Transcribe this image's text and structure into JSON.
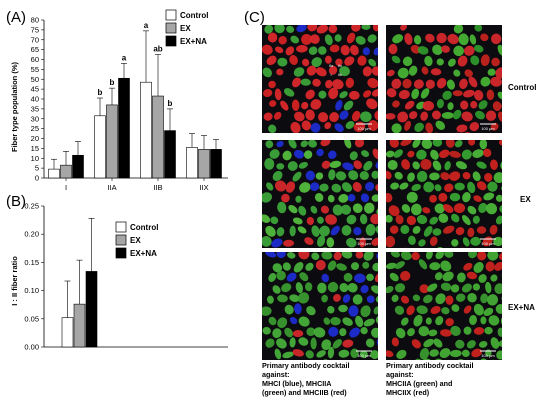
{
  "panel_labels": {
    "a": "(A)",
    "b": "(B)",
    "c": "(C)"
  },
  "colors": {
    "control": "#ffffff",
    "ex": "#a6a6a6",
    "exna": "#000000",
    "bar_stroke": "#000000"
  },
  "chart_data": [
    {
      "type": "bar",
      "panel": "A",
      "ylabel": "Fiber type population (%)",
      "xlabel": "",
      "ylim": [
        0,
        80
      ],
      "yticks": [
        0,
        5,
        10,
        15,
        20,
        25,
        30,
        35,
        40,
        45,
        50,
        55,
        60,
        65,
        70,
        75,
        80
      ],
      "categories": [
        "I",
        "IIA",
        "IIB",
        "IIX"
      ],
      "legend_position": "top-right",
      "series": [
        {
          "name": "Control",
          "color_key": "control",
          "values": [
            4.5,
            31.5,
            48.5,
            15.5
          ],
          "errors": [
            5,
            9,
            26,
            7
          ]
        },
        {
          "name": "EX",
          "color_key": "ex",
          "values": [
            6.5,
            37,
            41.5,
            14.5
          ],
          "errors": [
            7,
            8.5,
            21,
            7
          ]
        },
        {
          "name": "EX+NA",
          "color_key": "exna",
          "values": [
            11.5,
            50.5,
            24,
            14.5
          ],
          "errors": [
            7,
            7.5,
            11,
            5
          ]
        }
      ],
      "significance_labels": [
        {
          "category": 1,
          "series": 0,
          "text": "b"
        },
        {
          "category": 1,
          "series": 1,
          "text": "b"
        },
        {
          "category": 1,
          "series": 2,
          "text": "a"
        },
        {
          "category": 2,
          "series": 0,
          "text": "a"
        },
        {
          "category": 2,
          "series": 1,
          "text": "ab"
        },
        {
          "category": 2,
          "series": 2,
          "text": "b"
        }
      ]
    },
    {
      "type": "bar",
      "panel": "B",
      "ylabel": "I : II fiber ratio",
      "xlabel": "",
      "ylim": [
        0,
        0.25
      ],
      "yticks": [
        0.0,
        0.05,
        0.1,
        0.15,
        0.2,
        0.25
      ],
      "ytick_labels": [
        "0.00",
        "0.05",
        "0.10",
        "0.15",
        "0.20",
        "0.25"
      ],
      "categories": [
        ""
      ],
      "legend_position": "top-right",
      "series": [
        {
          "name": "Control",
          "color_key": "control",
          "values": [
            0.052
          ],
          "errors": [
            0.065
          ]
        },
        {
          "name": "EX",
          "color_key": "ex",
          "values": [
            0.076
          ],
          "errors": [
            0.078
          ]
        },
        {
          "name": "EX+NA",
          "color_key": "exna",
          "values": [
            0.134
          ],
          "errors": [
            0.094
          ]
        }
      ]
    }
  ],
  "micrographs": {
    "rows": [
      "Control",
      "EX",
      "EX+NA"
    ],
    "scale_text": "100 μm",
    "fiber_tags": [
      "IIa",
      "IIx",
      "I",
      "IIb"
    ],
    "captions": [
      [
        "Primary antibody cocktail",
        "against:",
        "MHCI (blue), MHCIIA",
        "(green) and MHCIIB (red)"
      ],
      [
        "Primary antibody cocktail",
        "against:",
        "MHCIIA  (green) and",
        "MHCIIX  (red)"
      ]
    ]
  }
}
